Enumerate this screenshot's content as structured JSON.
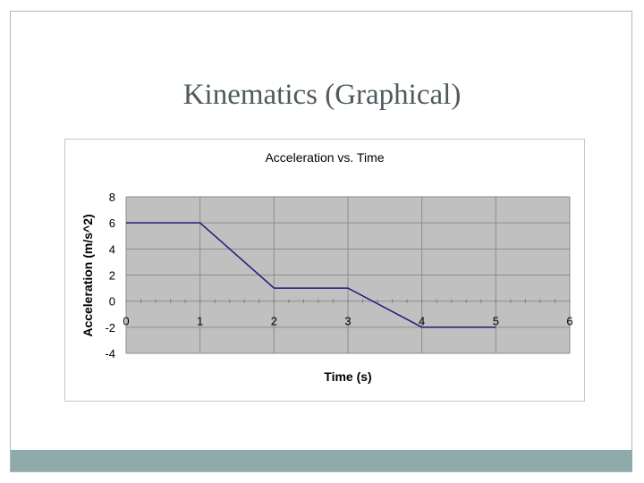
{
  "slide": {
    "title": "Kinematics (Graphical)"
  },
  "colors": {
    "plot_background": "#c0c0c0",
    "grid": "#8c8c8c",
    "series_line": "#1c1c7c",
    "bottom_bar": "#8eaaaa"
  },
  "chart_data": {
    "type": "line",
    "title": "Acceleration vs. Time",
    "xlabel": "Time (s)",
    "ylabel": "Acceleration (m/s^2)",
    "xlim": [
      0,
      6
    ],
    "ylim": [
      -4,
      8
    ],
    "x_ticks": [
      0,
      1,
      2,
      3,
      4,
      5,
      6
    ],
    "y_ticks": [
      8,
      6,
      4,
      2,
      0,
      -2,
      -4
    ],
    "grid": true,
    "legend": "none",
    "series": [
      {
        "x": [
          0,
          1,
          2,
          3,
          4,
          5
        ],
        "y": [
          6,
          6,
          1,
          1,
          -2,
          -2
        ]
      }
    ]
  }
}
